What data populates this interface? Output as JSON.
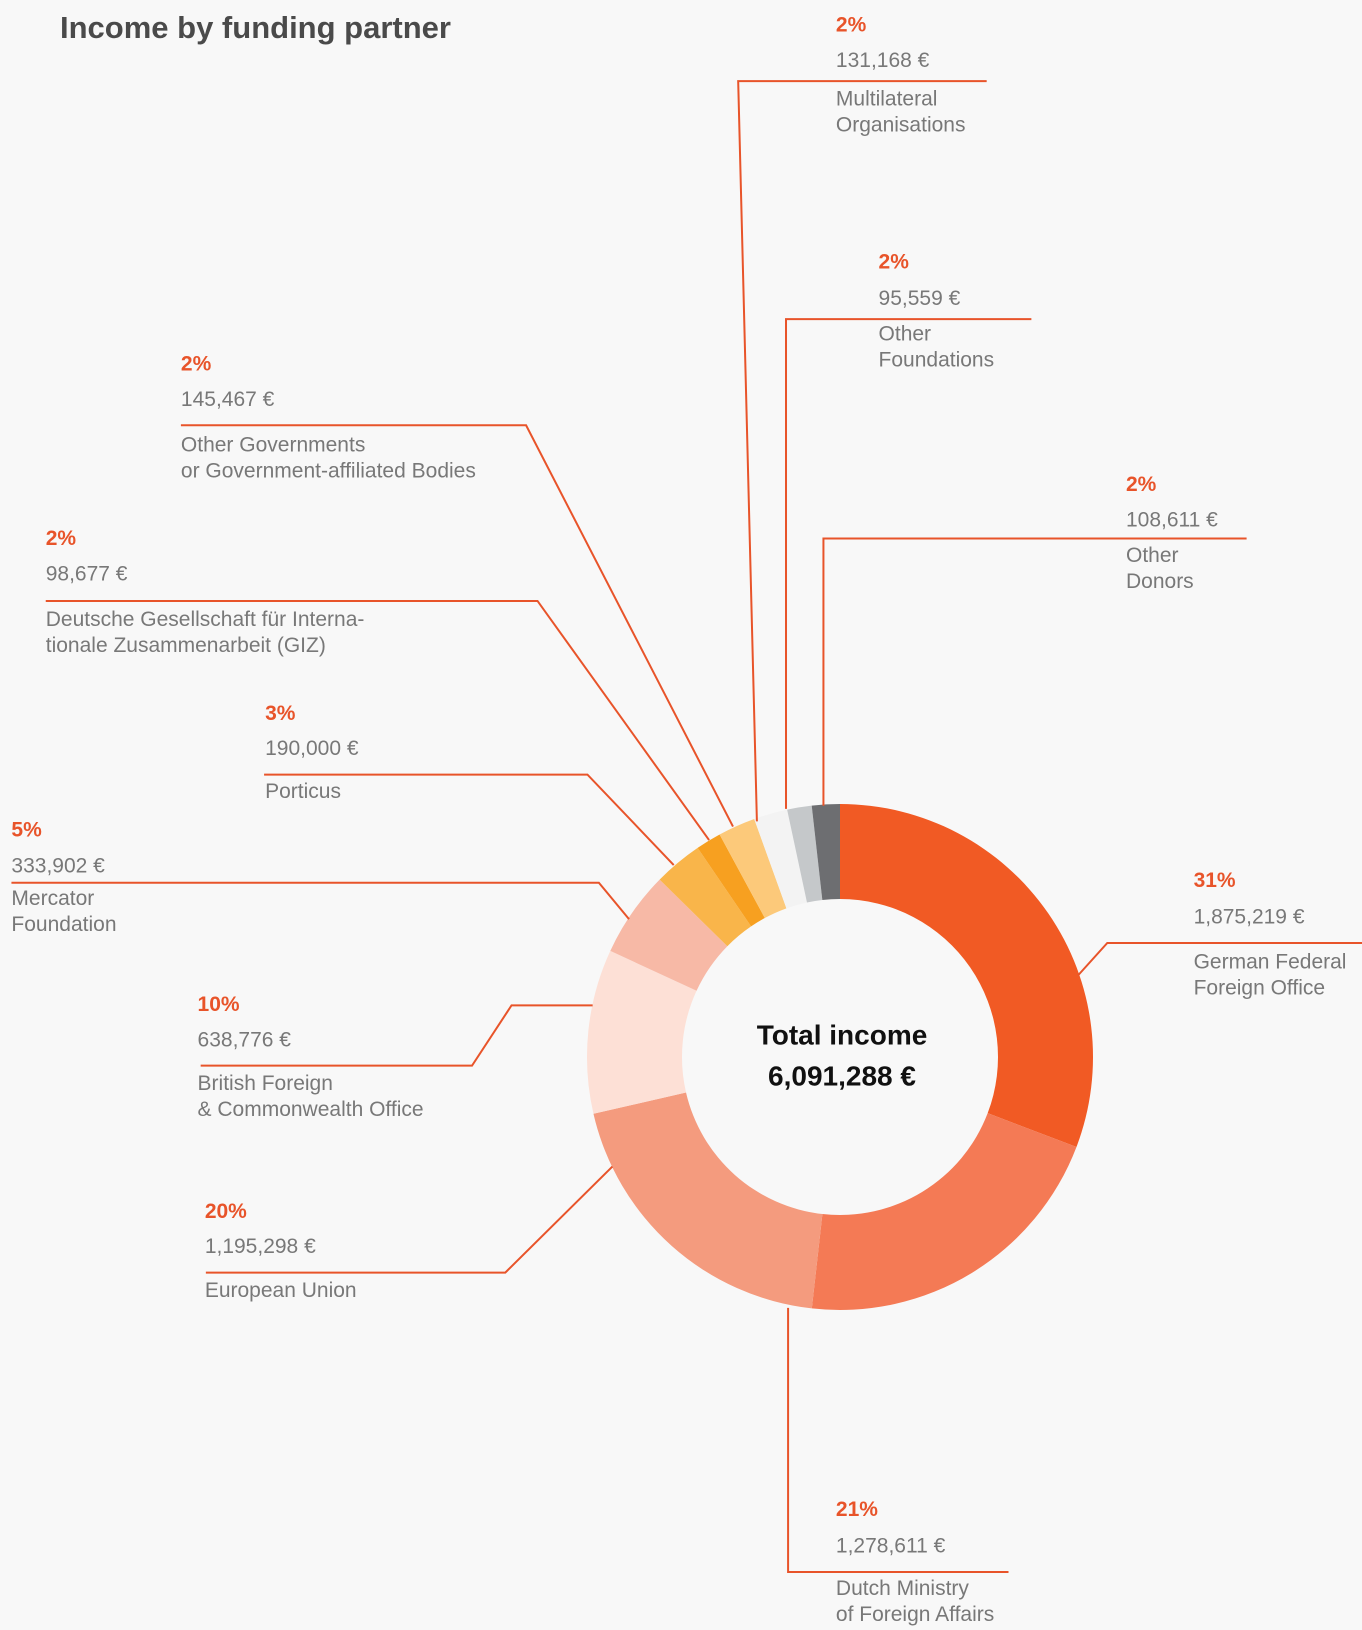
{
  "chart_data": {
    "type": "donut",
    "title": "Income by funding partner",
    "center_text": [
      "Total income",
      "6,091,288 €"
    ],
    "categories": [
      [
        "German Federal",
        "Foreign Office"
      ],
      [
        "Dutch Ministry",
        "of Foreign Affairs"
      ],
      [
        "European Union"
      ],
      [
        "British Foreign",
        "& Commonwealth Office"
      ],
      [
        "Mercator",
        "Foundation"
      ],
      [
        "Porticus"
      ],
      [
        "Deutsche Gesellschaft für Interna-",
        "tionale Zusammenarbeit (GIZ)"
      ],
      [
        "Other Governments",
        "or Government-affiliated Bodies"
      ],
      [
        "Multilateral",
        "Organisations"
      ],
      [
        "Other",
        "Foundations"
      ],
      [
        "Other",
        "Donors"
      ]
    ],
    "values": [
      1875219,
      1278611,
      1195298,
      638776,
      333902,
      190000,
      98677,
      145467,
      131168,
      95559,
      108611
    ],
    "value_labels": [
      "1,875,219 €",
      "1,278,611 €",
      "1,195,298 €",
      "638,776 €",
      "333,902 €",
      "190,000 €",
      "98,677 €",
      "145,467 €",
      "131,168 €",
      "95,559 €",
      "108,611  €"
    ],
    "percent_labels": [
      "31%",
      "21%",
      "20%",
      "10%",
      "5%",
      "3%",
      "2%",
      "2%",
      "2%",
      "2%",
      "2%"
    ],
    "colors": [
      "#f15a24",
      "#f47a55",
      "#f49b7e",
      "#fde0d6",
      "#f7b9a6",
      "#f9b54a",
      "#f7a020",
      "#fcc97a",
      "#f3f3f3",
      "#c5c8ca",
      "#6d6e71"
    ]
  }
}
